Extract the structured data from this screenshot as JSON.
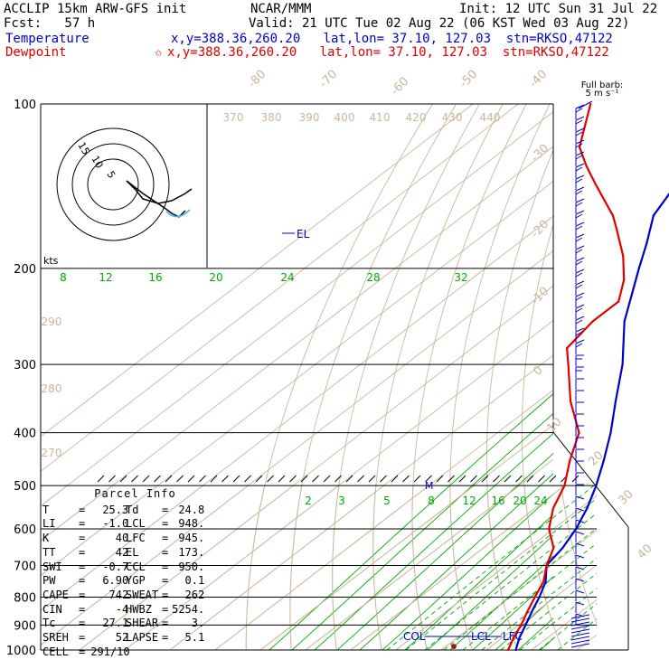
{
  "header": {
    "model": "ACCLIP 15km ARW-GFS init",
    "source": "NCAR/MMM",
    "init": "Init: 12 UTC Sun 31 Jul 22",
    "fcst": "Fcst:   57 h",
    "valid": "Valid: 21 UTC Tue 02 Aug 22 (06 KST Wed 03 Aug 22)",
    "temp_label": "Temperature",
    "temp_loc": "x,y=388.36,260.20   lat,lon= 37.10, 127.03  stn=RKSO,47122",
    "dew_label": "Dewpoint",
    "dew_marker": "✩",
    "dew_loc": "x,y=388.36,260.20   lat,lon= 37.10, 127.03  stn=RKSO,47122"
  },
  "barb_legend": {
    "line1": "Full barb:",
    "line2": "5 m s⁻¹"
  },
  "hodo_units": "kts",
  "hodo_rings": [
    "15",
    "10",
    "5"
  ],
  "parcel_info": {
    "title": "Parcel Info",
    "rows": [
      [
        [
          "T",
          "=",
          "25.3"
        ],
        [
          "Td",
          "=",
          "24.8"
        ]
      ],
      [
        [
          "LI",
          "=",
          "-1.0"
        ],
        [
          "LCL",
          "=",
          "948."
        ]
      ],
      [
        [
          "K",
          "=",
          "40"
        ],
        [
          "LFC",
          "=",
          "945."
        ]
      ],
      [
        [
          "TT",
          "=",
          "42"
        ],
        [
          "EL",
          "=",
          "173."
        ]
      ],
      [
        [
          "SWI",
          "=",
          "-0.7"
        ],
        [
          "CCL",
          "=",
          "950."
        ]
      ],
      [
        [
          "PW",
          "=",
          "6.90"
        ],
        [
          "YGP",
          "=",
          "0.1"
        ]
      ],
      [
        [
          "CAPE",
          "=",
          "742"
        ],
        [
          "SWEAT",
          "=",
          "262"
        ]
      ],
      [
        [
          "CIN",
          "=",
          "-4"
        ],
        [
          "HWBZ",
          "=",
          "5254."
        ]
      ],
      [
        [
          "Tc",
          "=",
          "27.1"
        ],
        [
          "SHEAR",
          "=",
          "3."
        ]
      ],
      [
        [
          "SREH",
          "=",
          "52"
        ],
        [
          "LAPSE",
          "=",
          "5.1"
        ]
      ],
      [
        [
          "CELL",
          "=",
          "291/10"
        ],
        [
          "",
          "",
          ""
        ]
      ]
    ]
  },
  "chart_data": {
    "type": "line",
    "subtype": "skew-T log-P sounding",
    "y_axis": "pressure (hPa), log scale, reversed",
    "ylim": [
      1000,
      100
    ],
    "pressure_labels": [
      "100",
      "200",
      "300",
      "400",
      "500",
      "600",
      "700",
      "800",
      "900",
      "1000"
    ],
    "isotherm_labels": [
      "-80",
      "-70",
      "-60",
      "-50",
      "-40",
      "-30",
      "-20",
      "-10",
      "0",
      "10",
      "20",
      "30",
      "40"
    ],
    "theta_labels": [
      "370",
      "380",
      "390",
      "400",
      "410",
      "420",
      "430",
      "440",
      "290",
      "280",
      "270"
    ],
    "mixing_ratio_labels_upper": [
      "8",
      "12",
      "16",
      "20",
      "24",
      "28",
      "32"
    ],
    "mixing_ratio_labels_lower": [
      "2",
      "3",
      "5",
      "8",
      "12",
      "16",
      "20",
      "24"
    ],
    "level_labels": [
      "EL",
      "M",
      "COL",
      "LCL",
      "LFC"
    ],
    "series": [
      {
        "color": "#0000cc",
        "points": [
          [
            1000,
            26.5
          ],
          [
            950,
            23.8
          ],
          [
            900,
            21.5
          ],
          [
            850,
            19.0
          ],
          [
            800,
            16.5
          ],
          [
            750,
            13.5
          ],
          [
            700,
            9.0
          ],
          [
            650,
            7.5
          ],
          [
            600,
            5.0
          ],
          [
            550,
            1.5
          ],
          [
            500,
            -3.0
          ],
          [
            450,
            -8.5
          ],
          [
            400,
            -15.0
          ],
          [
            350,
            -23.0
          ],
          [
            300,
            -32.0
          ],
          [
            250,
            -44.0
          ],
          [
            200,
            -56.0
          ],
          [
            180,
            -61.5
          ],
          [
            160,
            -68.0
          ],
          [
            140,
            -72.0
          ],
          [
            120,
            -74.0
          ],
          [
            110,
            -77.5
          ],
          [
            100,
            -79.5
          ]
        ]
      },
      {
        "color": "#e00000",
        "points": [
          [
            1000,
            24.8
          ],
          [
            950,
            22.5
          ],
          [
            900,
            20.5
          ],
          [
            850,
            18.0
          ],
          [
            800,
            15.5
          ],
          [
            750,
            13.0
          ],
          [
            700,
            9.0
          ],
          [
            650,
            5.5
          ],
          [
            600,
            -1.0
          ],
          [
            550,
            -6.0
          ],
          [
            500,
            -10.0
          ],
          [
            450,
            -16.0
          ],
          [
            400,
            -22.0
          ],
          [
            350,
            -33.0
          ],
          [
            300,
            -44.0
          ],
          [
            280,
            -49.0
          ],
          [
            250,
            -51.0
          ],
          [
            230,
            -51.0
          ],
          [
            210,
            -56.0
          ],
          [
            190,
            -63.0
          ],
          [
            170,
            -72.0
          ],
          [
            160,
            -77.0
          ],
          [
            140,
            -90.0
          ],
          [
            130,
            -97.0
          ],
          [
            120,
            -104.0
          ],
          [
            100,
            -114.0
          ]
        ]
      }
    ]
  }
}
